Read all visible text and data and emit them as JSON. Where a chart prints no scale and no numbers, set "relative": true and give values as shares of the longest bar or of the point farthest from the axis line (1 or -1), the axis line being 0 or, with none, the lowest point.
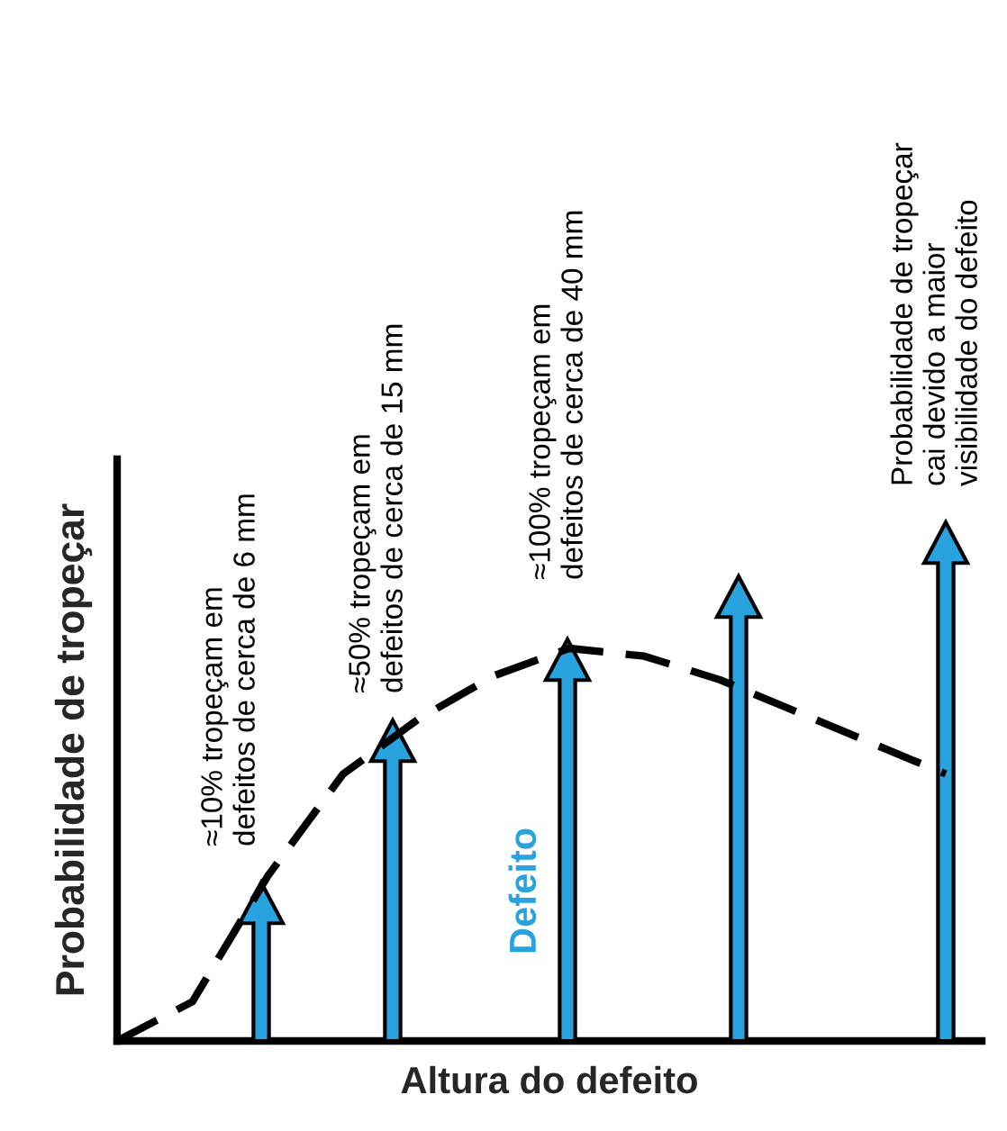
{
  "chart_data": {
    "type": "line",
    "relative": true,
    "ylabel": "Probabilidade de tropeçar",
    "xlabel": "Altura do defeito",
    "categories": [
      null,
      null,
      null,
      null,
      null,
      null,
      null,
      null,
      null,
      null,
      null,
      null
    ],
    "series": [
      {
        "color": "#000000",
        "values": [
          0,
          0.1,
          0.42,
          0.68,
          0.82,
          0.93,
          1.0,
          0.98,
          0.92,
          0.84,
          0.76,
          0.68
        ]
      }
    ],
    "line_style": "dashed",
    "tick_labels": false,
    "grid": false,
    "legend": false,
    "annotations": [
      "≈10% tropeçam em\ndefeitos de cerca de 6 mm",
      "≈50% tropeçam em\ndefeitos de cerca de 15 mm",
      "≈100% tropeçam em\ndefeitos de cerca de 40 mm",
      "Defeito",
      "Probabilidade de tropeçar\ncai devido a maior\nvisibilidade do defeito"
    ]
  }
}
